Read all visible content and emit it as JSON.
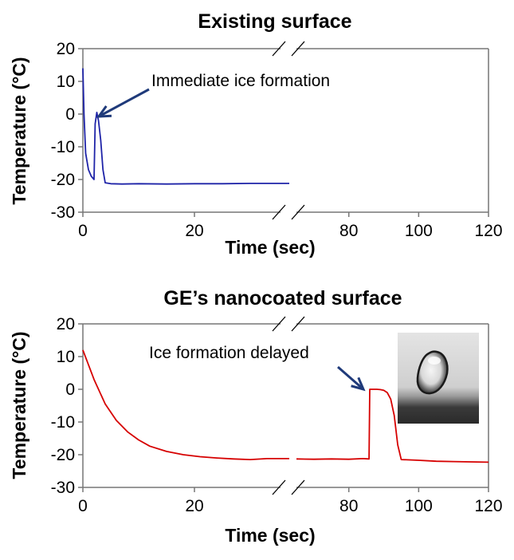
{
  "colors": {
    "existing_series": "#1f24a8",
    "nanocoated_series": "#d60000",
    "arrow": "#1f3a7a",
    "axis": "#777777"
  },
  "chart_data": [
    {
      "type": "line",
      "title": "Existing surface",
      "xlabel": "Time (sec)",
      "ylabel": "Temperature (°C)",
      "ylim": [
        -30,
        20
      ],
      "yticks": [
        "20",
        "10",
        "0",
        "-10",
        "-20",
        "-30"
      ],
      "xticks": [
        "0",
        "20",
        "80",
        "100",
        "120"
      ],
      "axis_break": true,
      "grid": false,
      "annotation": {
        "text": "Immediate ice formation",
        "x": 2.3,
        "y": -0.3
      },
      "series": [
        {
          "color": "#1f24a8",
          "segments": [
            {
              "x": [
                0,
                0.2,
                0.5,
                1,
                1.5,
                2,
                2.2,
                2.5,
                2.8,
                3.2,
                3.6,
                4,
                5,
                7,
                10,
                15,
                20,
                25,
                30,
                35,
                37
              ],
              "y": [
                14,
                0,
                -12,
                -17,
                -19,
                -20,
                -3,
                0.5,
                -2,
                -8,
                -17,
                -21,
                -21.3,
                -21.4,
                -21.3,
                -21.4,
                -21.3,
                -21.3,
                -21.2,
                -21.2,
                -21.2
              ]
            }
          ]
        }
      ]
    },
    {
      "type": "line",
      "title": "GE’s nanocoated surface",
      "xlabel": "Time (sec)",
      "ylabel": "Temperature (°C)",
      "ylim": [
        -30,
        20
      ],
      "yticks": [
        "20",
        "10",
        "0",
        "-10",
        "-20",
        "-30"
      ],
      "xticks": [
        "0",
        "20",
        "80",
        "100",
        "120"
      ],
      "axis_break": true,
      "grid": false,
      "annotation": {
        "text": "Ice formation delayed",
        "x": 86,
        "y": 0
      },
      "inset": {
        "kind": "droplet-photo"
      },
      "series": [
        {
          "color": "#d60000",
          "segments": [
            {
              "x": [
                0,
                2,
                4,
                6,
                8,
                10,
                12,
                15,
                18,
                21,
                24,
                27,
                30,
                33,
                35,
                37
              ],
              "y": [
                12,
                3,
                -4.5,
                -9.5,
                -13,
                -15.5,
                -17.4,
                -19,
                -20,
                -20.6,
                -21,
                -21.3,
                -21.5,
                -21.2,
                -21.2,
                -21.2
              ]
            },
            {
              "x": [
                65,
                70,
                75,
                80,
                84,
                85.8,
                86,
                87,
                88,
                89,
                90,
                91,
                92,
                93,
                94,
                95,
                100,
                105,
                110,
                115,
                120
              ],
              "y": [
                -21.3,
                -21.4,
                -21.3,
                -21.4,
                -21.2,
                -21.3,
                0,
                0,
                0,
                -0.1,
                -0.3,
                -1,
                -3,
                -8,
                -17,
                -21.5,
                -21.7,
                -22,
                -22.1,
                -22.2,
                -22.3
              ]
            }
          ]
        }
      ]
    }
  ]
}
